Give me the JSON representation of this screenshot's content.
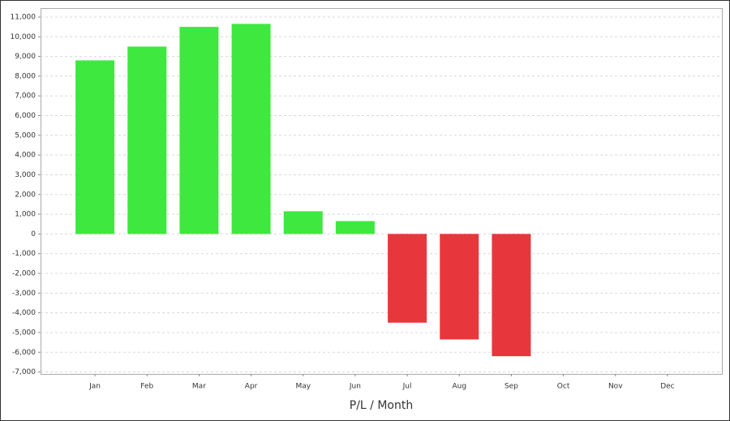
{
  "chart_data": {
    "type": "bar",
    "x_label": "P/L / Month",
    "categories": [
      "Jan",
      "Feb",
      "Mar",
      "Apr",
      "May",
      "Jun",
      "Jul",
      "Aug",
      "Sep",
      "Oct",
      "Nov",
      "Dec"
    ],
    "values": [
      8800,
      9500,
      10500,
      10650,
      1150,
      650,
      -4500,
      -5350,
      -6200,
      null,
      null,
      null
    ],
    "positive_color": "#3ee83e",
    "negative_color": "#e8373c",
    "ylim": [
      -7100,
      11450
    ],
    "yticks": [
      {
        "value": -7000,
        "label": "-7,000"
      },
      {
        "value": -6000,
        "label": "-6,000"
      },
      {
        "value": -5000,
        "label": "-5,000"
      },
      {
        "value": -4000,
        "label": "-4,000"
      },
      {
        "value": -3000,
        "label": "-3,000"
      },
      {
        "value": -2000,
        "label": "-2,000"
      },
      {
        "value": -1000,
        "label": "-1,000"
      },
      0,
      {
        "value": 1000,
        "label": "1,000"
      },
      {
        "value": 2000,
        "label": "2,000"
      },
      {
        "value": 3000,
        "label": "3,000"
      },
      {
        "value": 4000,
        "label": "4,000"
      },
      {
        "value": 5000,
        "label": "5,000"
      },
      {
        "value": 6000,
        "label": "6,000"
      },
      {
        "value": 7000,
        "label": "7,000"
      },
      {
        "value": 8000,
        "label": "8,000"
      },
      {
        "value": 9000,
        "label": "9,000"
      },
      {
        "value": 10000,
        "label": "10,000"
      },
      {
        "value": 11000,
        "label": "11,000"
      }
    ],
    "grid": true
  }
}
